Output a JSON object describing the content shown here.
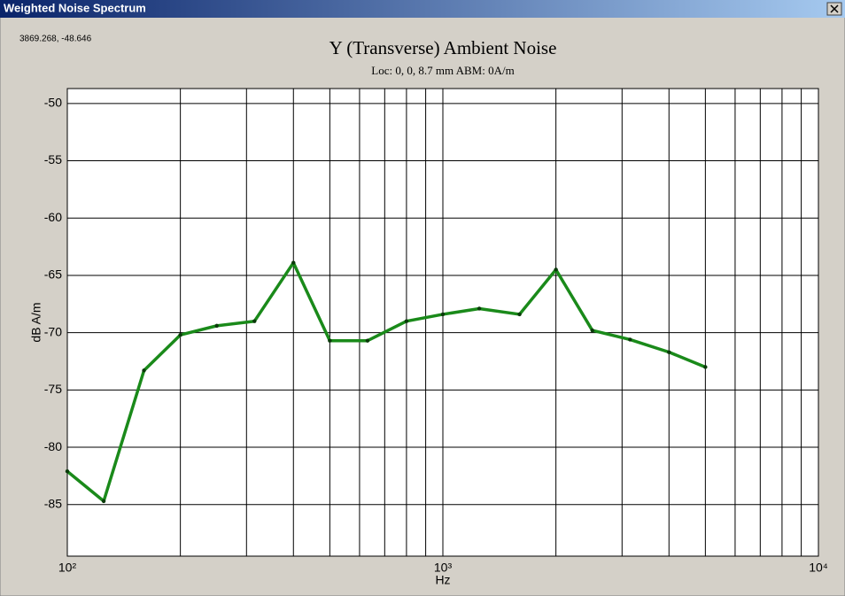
{
  "window": {
    "title": "Weighted Noise Spectrum",
    "cursor_readout": "3869.268, -48.646"
  },
  "chart_data": {
    "type": "line",
    "title": "Y (Transverse) Ambient Noise",
    "subtitle": "Loc: 0, 0, 8.7 mm ABM: 0A/m",
    "xlabel": "Hz",
    "ylabel": "dB A/m",
    "x": [
      100,
      125,
      160,
      200,
      250,
      315,
      400,
      500,
      630,
      800,
      1000,
      1250,
      1600,
      2000,
      2500,
      3150,
      4000,
      5000
    ],
    "series": [
      {
        "name": "Y",
        "color": "#1a8a1a",
        "values": [
          -82.1,
          -84.7,
          -73.3,
          -70.2,
          -69.4,
          -69.0,
          -63.9,
          -70.7,
          -70.7,
          -69.0,
          -68.4,
          -67.9,
          -68.4,
          -64.5,
          -69.8,
          -70.6,
          -71.7,
          -73.0
        ]
      }
    ],
    "xscale": "log",
    "xlim": [
      100,
      10000
    ],
    "xticks": [
      {
        "value": 100,
        "label": "10²"
      },
      {
        "value": 1000,
        "label": "10³"
      },
      {
        "value": 10000,
        "label": "10⁴"
      }
    ],
    "xgrid_minor": [
      200,
      300,
      400,
      500,
      600,
      700,
      800,
      900,
      2000,
      3000,
      4000,
      5000,
      6000,
      7000,
      8000,
      9000
    ],
    "ylim": [
      -89.5,
      -48.7
    ],
    "yticks": [
      -50,
      -55,
      -60,
      -65,
      -70,
      -75,
      -80,
      -85
    ],
    "grid": true
  }
}
